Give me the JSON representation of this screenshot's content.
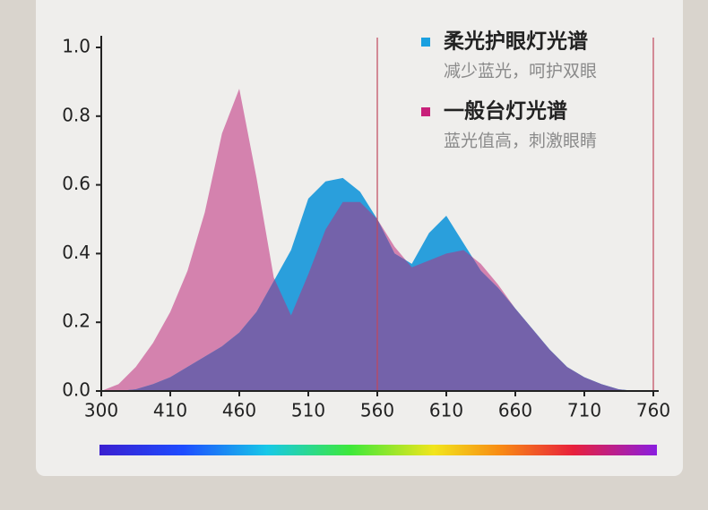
{
  "chart_data": {
    "type": "area",
    "categories": [
      "300",
      null,
      null,
      null,
      "410",
      null,
      null,
      null,
      "460",
      null,
      null,
      null,
      "510",
      null,
      null,
      null,
      "560",
      null,
      null,
      null,
      "610",
      null,
      null,
      null,
      "660",
      null,
      null,
      null,
      "710",
      null,
      null,
      null,
      "760"
    ],
    "series": [
      {
        "name": "一般台灯光谱",
        "subtitle": "蓝光值高，刺激眼睛",
        "color": "#c8207a",
        "fill": "#d482ae",
        "values": [
          0,
          0.02,
          0.07,
          0.14,
          0.23,
          0.35,
          0.52,
          0.75,
          0.88,
          0.62,
          0.33,
          0.22,
          0.34,
          0.47,
          0.55,
          0.55,
          0.5,
          0.42,
          0.36,
          0.38,
          0.4,
          0.41,
          0.37,
          0.31,
          0.24,
          0.18,
          0.12,
          0.07,
          0.04,
          0.02,
          0.005,
          0,
          0
        ]
      },
      {
        "name": "柔光护眼灯光谱",
        "subtitle": "减少蓝光，呵护双眼",
        "color": "#1aa0e0",
        "fill": "#2a9fdc",
        "values": [
          0,
          0,
          0.005,
          0.02,
          0.04,
          0.07,
          0.1,
          0.13,
          0.17,
          0.23,
          0.32,
          0.41,
          0.56,
          0.61,
          0.62,
          0.58,
          0.5,
          0.4,
          0.37,
          0.46,
          0.51,
          0.43,
          0.35,
          0.3,
          0.24,
          0.18,
          0.12,
          0.07,
          0.04,
          0.02,
          0.005,
          0,
          0
        ]
      }
    ],
    "overlap_color": "#7462aa",
    "ylim": [
      0,
      1
    ],
    "yticks": [
      {
        "value": 0,
        "label": "0.0"
      },
      0.2,
      0.4,
      0.6,
      0.8,
      {
        "value": 1,
        "label": "1.0"
      }
    ]
  }
}
